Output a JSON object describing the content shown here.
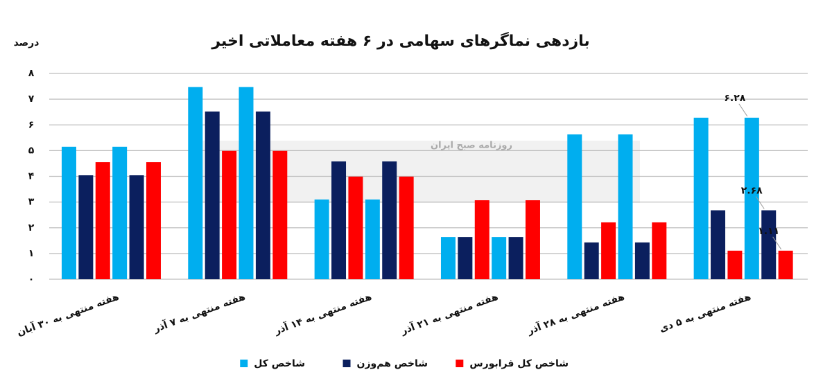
{
  "chart_data": {
    "type": "bar",
    "title": "بازدهی نماگرهای سهامی در ۶ هفته معاملاتی اخیر",
    "y_label": "درصد",
    "watermark": "روزنامه صبح ایران",
    "categories": [
      "هفته منتهی به ۳۰ آبان",
      "هفته منتهی به ۷ آذر",
      "هفته منتهی به ۱۴ آذر",
      "هفته منتهی به ۲۱ آذر",
      "هفته منتهی به ۲۸ آذر",
      "هفته منتهی به ۵ دی"
    ],
    "series": [
      {
        "name": "شاخص کل",
        "color": "#00aeef",
        "values": [
          5.15,
          7.47,
          3.1,
          1.64,
          5.63,
          6.28
        ],
        "value_labels": [
          null,
          null,
          null,
          null,
          null,
          "۶.۲۸"
        ]
      },
      {
        "name": "شاخص هم‌وزن",
        "color": "#0b1f5e",
        "values": [
          4.04,
          6.52,
          4.58,
          1.64,
          1.43,
          2.68
        ],
        "value_labels": [
          null,
          null,
          null,
          null,
          null,
          "۲.۶۸"
        ]
      },
      {
        "name": "شاخص کل فرابورس",
        "color": "#ff0000",
        "values": [
          4.55,
          4.99,
          3.99,
          3.07,
          2.21,
          1.11
        ],
        "value_labels": [
          null,
          null,
          null,
          null,
          null,
          "۱.۱۱"
        ]
      }
    ],
    "ylim": [
      0,
      8
    ],
    "yticks": [
      {
        "value": 0,
        "label": "۰"
      },
      {
        "value": 1,
        "label": "۱"
      },
      {
        "value": 2,
        "label": "۲"
      },
      {
        "value": 3,
        "label": "۳"
      },
      {
        "value": 4,
        "label": "۴"
      },
      {
        "value": 5,
        "label": "۵"
      },
      {
        "value": 6,
        "label": "۶"
      },
      {
        "value": 7,
        "label": "۷"
      },
      {
        "value": 8,
        "label": "۸"
      }
    ],
    "grid": true
  }
}
